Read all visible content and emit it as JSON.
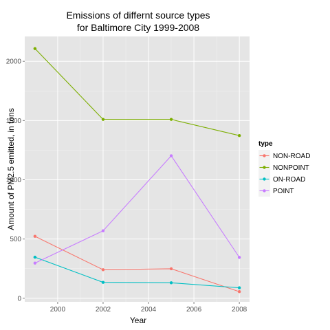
{
  "chart_data": {
    "type": "line",
    "title_lines": [
      "Emissions of differnt source types",
      "for Baltimore City 1999-2008"
    ],
    "xlabel": "Year",
    "ylabel": "Amount of PM2.5 emitted, in tons",
    "x": [
      1999,
      2002,
      2005,
      2008
    ],
    "xlim": [
      1998.55,
      2008.45
    ],
    "ylim": [
      -30,
      2210
    ],
    "xticks": [
      2000,
      2002,
      2004,
      2006,
      2008
    ],
    "yticks": [
      0,
      500,
      1000,
      1500,
      2000
    ],
    "grid": true,
    "legend": {
      "title": "type",
      "position": "right"
    },
    "series": [
      {
        "name": "NON-ROAD",
        "color": "#F8766D",
        "values": [
          522.94,
          240.85,
          248.93,
          55.82
        ]
      },
      {
        "name": "NONPOINT",
        "color": "#7CAE00",
        "values": [
          2107.63,
          1509.5,
          1509.5,
          1373.21
        ]
      },
      {
        "name": "ON-ROAD",
        "color": "#00BFC4",
        "values": [
          346.82,
          134.31,
          130.43,
          88.28
        ]
      },
      {
        "name": "POINT",
        "color": "#C77CFF",
        "values": [
          296.8,
          569.26,
          1202.49,
          344.98
        ]
      }
    ]
  }
}
